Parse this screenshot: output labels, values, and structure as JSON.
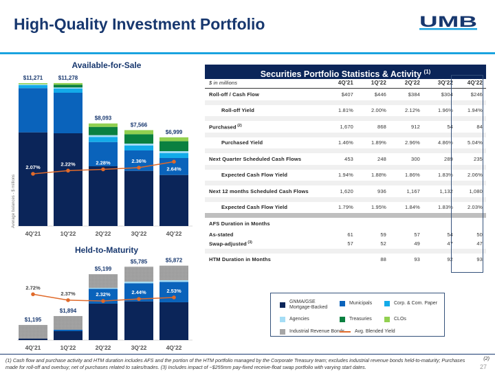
{
  "header": {
    "title": "High-Quality Investment Portfolio",
    "logo_text": "UMB"
  },
  "colors": {
    "gnma": "#0B2559",
    "muni": "#0A63BB",
    "corp": "#13ABE9",
    "agencies": "#A5DDF5",
    "treasuries": "#0A8040",
    "clos": "#92D050",
    "irb": "#A6A6A6",
    "yield": "#E06A2A"
  },
  "chart_data": [
    {
      "type": "bar",
      "title": "Available-for-Sale",
      "ylabel": "Average balances - $ millions",
      "categories": [
        "4Q'21",
        "1Q'22",
        "2Q'22",
        "3Q'22",
        "4Q'22"
      ],
      "totals_labels": [
        "$11,271",
        "$11,278",
        "$8,093",
        "$7,566",
        "$6,999"
      ],
      "series": [
        {
          "name": "GNMA/GSE Mortgage-Backed",
          "key": "gnma",
          "values": [
            7390,
            7317,
            4715,
            4352,
            4027
          ]
        },
        {
          "name": "Municipals",
          "key": "muni",
          "values": [
            3490,
            3198,
            1913,
            1610,
            1339
          ]
        },
        {
          "name": "Corp. & Com. Paper",
          "key": "corp",
          "values": [
            233,
            325,
            401,
            396,
            396
          ]
        },
        {
          "name": "Agencies",
          "key": "agencies",
          "values": [
            70,
            92,
            141,
            146,
            146
          ]
        },
        {
          "name": "Treasuries",
          "key": "treasuries",
          "values": [
            0,
            217,
            652,
            737,
            782
          ]
        },
        {
          "name": "CLOs",
          "key": "clos",
          "values": [
            88,
            129,
            271,
            325,
            309
          ]
        }
      ],
      "line": {
        "name": "Avg. Blended Yield",
        "values": [
          2.07,
          2.22,
          2.28,
          2.36,
          2.64
        ],
        "labels": [
          "2.07%",
          "2.22%",
          "2.28%",
          "2.36%",
          "2.64%"
        ]
      }
    },
    {
      "type": "bar",
      "title": "Held-to-Maturity",
      "categories": [
        "4Q'21",
        "1Q'22",
        "2Q'22",
        "3Q'22",
        "4Q'22"
      ],
      "totals_labels": [
        "$1,195",
        "$1,894",
        "$5,199",
        "$5,785",
        "$5,872"
      ],
      "series": [
        {
          "name": "GNMA/GSE Mortgage-Backed",
          "key": "gnma",
          "values": [
            125,
            705,
            2874,
            3053,
            2983
          ]
        },
        {
          "name": "Municipals",
          "key": "muni",
          "values": [
            0,
            108,
            1177,
            1432,
            1611
          ]
        },
        {
          "name": "Agencies",
          "key": "agencies",
          "values": [
            0,
            0,
            72,
            125,
            125
          ]
        },
        {
          "name": "Industrial Revenue Bonds",
          "key": "irb",
          "values": [
            1070,
            1081,
            1076,
            1175,
            1153
          ]
        }
      ],
      "line": {
        "name": "Avg. Blended Yield",
        "values": [
          2.72,
          2.37,
          2.32,
          2.44,
          2.53
        ],
        "labels": [
          "2.72%",
          "2.37%",
          "2.32%",
          "2.44%",
          "2.53%"
        ]
      }
    }
  ],
  "table": {
    "title": "Securities Portfolio Statistics & Activity",
    "title_sup": "(1)",
    "unit_label": "$ in millions",
    "columns": [
      "4Q'21",
      "1Q'22",
      "2Q'22",
      "3Q'22",
      "4Q'22"
    ],
    "rows": [
      {
        "label": "Roll-off / Cash Flow",
        "values": [
          "$407",
          "$446",
          "$384",
          "$304",
          "$246"
        ]
      },
      {
        "label": "Roll-off Yield",
        "indent": true,
        "values": [
          "1.81%",
          "2.00%",
          "2.12%",
          "1.96%",
          "1.94%"
        ]
      },
      {
        "label": "Purchased",
        "sup": "(2)",
        "values": [
          "1,670",
          "868",
          "912",
          "54",
          "84"
        ]
      },
      {
        "label": "Purchased Yield",
        "indent": true,
        "values": [
          "1.46%",
          "1.89%",
          "2.96%",
          "4.86%",
          "5.04%"
        ]
      },
      {
        "label": "Next Quarter Scheduled Cash Flows",
        "values": [
          "453",
          "248",
          "300",
          "289",
          "235"
        ]
      },
      {
        "label": "Expected Cash Flow Yield",
        "indent": true,
        "values": [
          "1.94%",
          "1.88%",
          "1.86%",
          "1.83%",
          "2.06%"
        ]
      },
      {
        "label": "Next 12 months Scheduled Cash Flows",
        "values": [
          "1,620",
          "936",
          "1,167",
          "1,132",
          "1,080"
        ]
      },
      {
        "label": "Expected Cash Flow Yield",
        "indent": true,
        "values": [
          "1.79%",
          "1.95%",
          "1.84%",
          "1.83%",
          "2.03%"
        ]
      },
      {
        "label": "AFS Duration in Months",
        "values": [
          "",
          "",
          "",
          "",
          ""
        ]
      },
      {
        "label": "As-stated",
        "values": [
          "61",
          "59",
          "57",
          "54",
          "50"
        ]
      },
      {
        "label": "Swap-adjusted",
        "sup": "(3)",
        "values": [
          "57",
          "52",
          "49",
          "47",
          "47"
        ]
      },
      {
        "label": "HTM Duration in Months",
        "values": [
          "",
          "88",
          "93",
          "92",
          "93"
        ]
      }
    ]
  },
  "legend": {
    "items": [
      {
        "key": "gnma",
        "label": "GNMA/GSE Mortgage-Backed"
      },
      {
        "key": "muni",
        "label": "Municipals"
      },
      {
        "key": "corp",
        "label": "Corp. & Com. Paper"
      },
      {
        "key": "agencies",
        "label": "Agencies"
      },
      {
        "key": "treasuries",
        "label": "Treasuries"
      },
      {
        "key": "clos",
        "label": "CLOs"
      },
      {
        "key": "irb",
        "label": "Industrial Revenue Bonds"
      },
      {
        "key": "yield",
        "label": "Avg. Blended Yield"
      }
    ]
  },
  "footnote": {
    "text": "(1) Cash flow and purchase activity and HTM duration includes AFS and the portion of the HTM portfolio managed by the Corporate Treasury team; excludes industrial revenue bonds held-to-maturity; Purchases made for roll-off and overbuy; net of purchases related to sales/trades. (3) Includes impact of ~$255mm pay-fixed receive-float swap portfolio with varying start dates.",
    "right_ref": "(2)",
    "page_number": "27"
  }
}
